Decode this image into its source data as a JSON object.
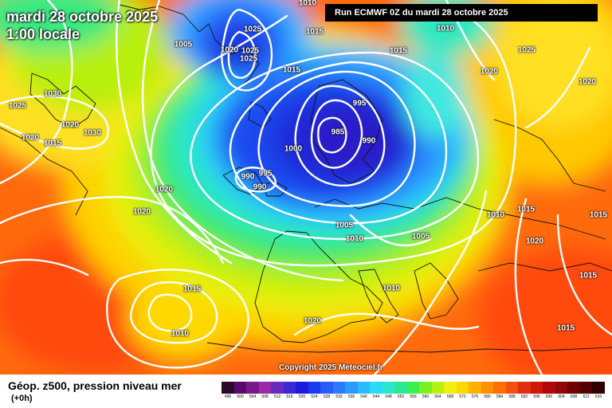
{
  "header": {
    "date": "mardi 28 octobre 2025",
    "time": "1:00 locale",
    "run": "Run ECMWF 0Z du mardi 28 octobre 2025"
  },
  "copyright": "Copyright 2025 Meteociel.fr",
  "footer": {
    "title": "Géop. z500, pression niveau mer",
    "step": "(+0h)"
  },
  "legend": {
    "values": [
      "496",
      "500",
      "504",
      "508",
      "512",
      "516",
      "520",
      "524",
      "528",
      "532",
      "536",
      "540",
      "544",
      "548",
      "552",
      "556",
      "560",
      "564",
      "568",
      "572",
      "576",
      "580",
      "584",
      "588",
      "592",
      "596",
      "600",
      "604",
      "608",
      "612",
      "616"
    ],
    "colors": [
      "#2a0a2a",
      "#5a0a6a",
      "#7a1a8a",
      "#9a2aaa",
      "#6a2abf",
      "#3a2ad0",
      "#1a1ae0",
      "#1a3af0",
      "#2a5af8",
      "#2a7aff",
      "#2a9aff",
      "#2abaff",
      "#2adaf8",
      "#2ae8d0",
      "#2ae890",
      "#3af050",
      "#7af020",
      "#b8f010",
      "#f0f010",
      "#ffd800",
      "#ffb000",
      "#ff9000",
      "#ff7000",
      "#f05010",
      "#e03010",
      "#d01808",
      "#b00808",
      "#900808",
      "#700000",
      "#500000",
      "#300000"
    ]
  },
  "pressure_labels": [
    "1010",
    "1025",
    "1020",
    "1025",
    "1015",
    "1025",
    "1030",
    "1025",
    "1030",
    "1020",
    "1015",
    "1020",
    "1020",
    "1015",
    "1010",
    "1025",
    "1020",
    "1020",
    "1015",
    "1005",
    "1010",
    "1025",
    "1020",
    "995",
    "985",
    "990",
    "1000",
    "990",
    "995",
    "990",
    "1005",
    "1010",
    "1005",
    "1015",
    "1015",
    "1020",
    "1015",
    "1015",
    "1010",
    "1020",
    "1010",
    "1010",
    "1015"
  ]
}
